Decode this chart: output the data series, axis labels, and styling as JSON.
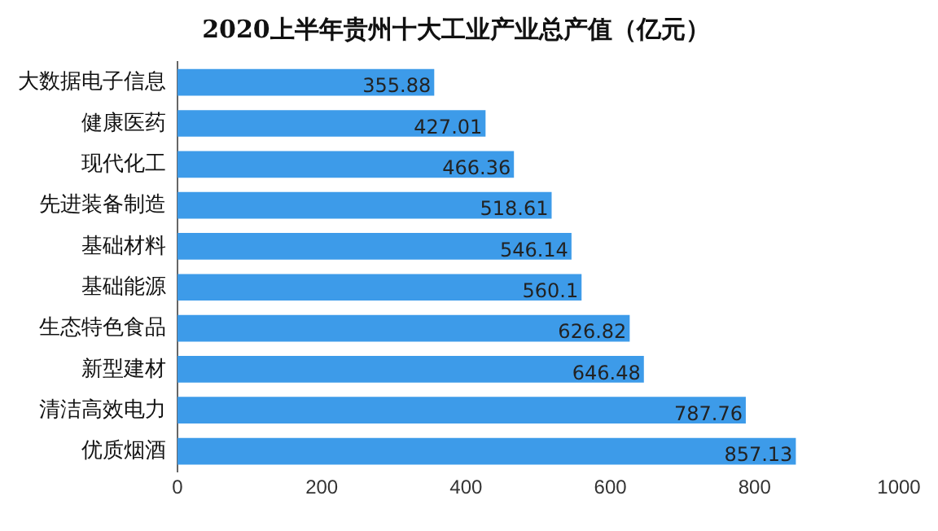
{
  "chart_data": {
    "type": "bar",
    "orientation": "horizontal",
    "title": "2020上半年贵州十大工业产业总产值（亿元）",
    "categories": [
      "大数据电子信息",
      "健康医药",
      "现代化工",
      "先进装备制造",
      "基础材料",
      "基础能源",
      "生态特色食品",
      "新型建材",
      "清洁高效电力",
      "优质烟酒"
    ],
    "values": [
      355.88,
      427.01,
      466.36,
      518.61,
      546.14,
      560.1,
      626.82,
      646.48,
      787.76,
      857.13
    ],
    "color": "#3d9be9",
    "xlim": [
      0,
      1000
    ],
    "xticks": [
      0,
      200,
      400,
      600,
      800,
      1000
    ],
    "grid": false,
    "legend": false,
    "data_labels": true
  }
}
